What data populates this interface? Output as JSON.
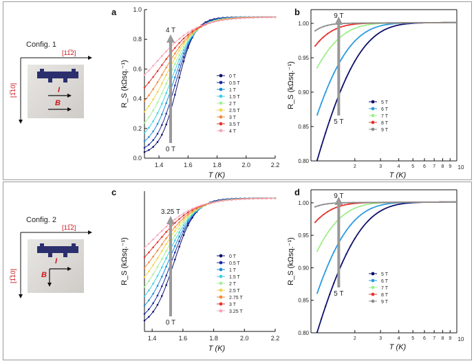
{
  "configs": [
    {
      "title": "Config. 1",
      "dir_h": "[11̅2]",
      "dir_v": "[1̅10]",
      "current_label": "I",
      "field_label": "B",
      "field_dir": "horizontal"
    },
    {
      "title": "Config. 2",
      "dir_h": "[11̅2]",
      "dir_v": "[1̅10]",
      "current_label": "I",
      "field_label": "B",
      "field_dir": "vertical"
    }
  ],
  "colors": {
    "pal9": [
      "#0d0f6b",
      "#1a2aa0",
      "#1f8ad8",
      "#3fd0e6",
      "#a7ef9a",
      "#f5d34a",
      "#f28a3a",
      "#e3342f",
      "#f4a6b8",
      "#b3b3b3"
    ],
    "pal5": [
      "#0d0f6b",
      "#2a9be0",
      "#9fef8a",
      "#e3342f",
      "#8c8c8c"
    ]
  },
  "chart_data": [
    {
      "panel": "a",
      "type": "line",
      "xlabel": "T (K)",
      "ylabel": "R_S (kΩsq.⁻¹)",
      "xlim": [
        1.3,
        2.2
      ],
      "ylim": [
        0.0,
        1.0
      ],
      "xticks": [
        "1.4",
        "1.6",
        "1.8",
        "2.0",
        "2.2"
      ],
      "yticks": [
        "0.0",
        "0.2",
        "0.4",
        "0.6",
        "0.8",
        "1.0"
      ],
      "arrow_top": "4 T",
      "arrow_bottom": "0 T",
      "series": [
        {
          "name": "0 T",
          "tc": 1.525,
          "width": 0.06,
          "low": 0.02
        },
        {
          "name": "0.5 T",
          "tc": 1.51,
          "width": 0.068,
          "low": 0.03
        },
        {
          "name": "1 T",
          "tc": 1.495,
          "width": 0.076,
          "low": 0.05
        },
        {
          "name": "1.5 T",
          "tc": 1.48,
          "width": 0.084,
          "low": 0.08
        },
        {
          "name": "2 T",
          "tc": 1.465,
          "width": 0.092,
          "low": 0.12
        },
        {
          "name": "2.5 T",
          "tc": 1.45,
          "width": 0.1,
          "low": 0.17
        },
        {
          "name": "3 T",
          "tc": 1.435,
          "width": 0.11,
          "low": 0.22
        },
        {
          "name": "3.5 T",
          "tc": 1.415,
          "width": 0.122,
          "low": 0.29
        },
        {
          "name": "4 T",
          "tc": 1.39,
          "width": 0.135,
          "low": 0.36
        }
      ]
    },
    {
      "panel": "b",
      "type": "line",
      "xlabel": "T (K)",
      "ylabel": "R_S (kΩsq.⁻¹)",
      "xscale": "log",
      "xlim": [
        1.0,
        10.0
      ],
      "ylim": [
        0.8,
        1.02
      ],
      "xticks": [
        "2",
        "3",
        "4",
        "5",
        "6",
        "7",
        "8",
        "9"
      ],
      "xlabel_end": "10",
      "yticks": [
        "0.80",
        "0.85",
        "0.90",
        "0.95",
        "1.00"
      ],
      "arrow_top": "9 T",
      "arrow_bottom": "5 T",
      "series": [
        {
          "name": "5 T",
          "start": 0.8,
          "t0": 1.1,
          "scale": 0.7
        },
        {
          "name": "6 T",
          "start": 0.866,
          "t0": 1.1,
          "scale": 0.55
        },
        {
          "name": "7 T",
          "start": 0.935,
          "t0": 1.1,
          "scale": 0.42
        },
        {
          "name": "8 T",
          "start": 0.965,
          "t0": 1.05,
          "scale": 0.3
        },
        {
          "name": "9 T",
          "start": 0.988,
          "t0": 1.05,
          "scale": 0.18
        }
      ]
    },
    {
      "panel": "c",
      "type": "line",
      "xlabel": "T (K)",
      "ylabel": "R_S (kΩsq.⁻¹)",
      "xlim": [
        1.35,
        2.2
      ],
      "ylim": [
        0.0,
        1.0
      ],
      "xticks": [
        "1.4",
        "1.6",
        "1.8",
        "2.0",
        "2.2"
      ],
      "yticks": [],
      "arrow_top": "3.25 T",
      "arrow_bottom": "0 T",
      "series": [
        {
          "name": "0 T",
          "tc": 1.54,
          "width": 0.07,
          "low": 0.02
        },
        {
          "name": "0.5 T",
          "tc": 1.525,
          "width": 0.077,
          "low": 0.04
        },
        {
          "name": "1 T",
          "tc": 1.51,
          "width": 0.084,
          "low": 0.07
        },
        {
          "name": "1.5 T",
          "tc": 1.495,
          "width": 0.091,
          "low": 0.11
        },
        {
          "name": "2 T",
          "tc": 1.48,
          "width": 0.098,
          "low": 0.15
        },
        {
          "name": "2.5 T",
          "tc": 1.465,
          "width": 0.105,
          "low": 0.2
        },
        {
          "name": "2.75 T",
          "tc": 1.45,
          "width": 0.113,
          "low": 0.25
        },
        {
          "name": "3 T",
          "tc": 1.43,
          "width": 0.122,
          "low": 0.31
        },
        {
          "name": "3.25 T",
          "tc": 1.41,
          "width": 0.132,
          "low": 0.37
        }
      ]
    },
    {
      "panel": "d",
      "type": "line",
      "xlabel": "T (K)",
      "ylabel": "R_S (kΩsq.⁻¹)",
      "xscale": "log",
      "xlim": [
        1.0,
        10.0
      ],
      "ylim": [
        0.8,
        1.02
      ],
      "xticks": [
        "2",
        "3",
        "4",
        "5",
        "6",
        "7",
        "8",
        "9"
      ],
      "xlabel_end": "10",
      "yticks": [
        "0.80",
        "0.85",
        "0.90",
        "0.95",
        "1.00"
      ],
      "arrow_top": "9 T",
      "arrow_bottom": "5 T",
      "series": [
        {
          "name": "5 T",
          "start": 0.8,
          "t0": 1.1,
          "scale": 0.7
        },
        {
          "name": "6 T",
          "start": 0.86,
          "t0": 1.1,
          "scale": 0.55
        },
        {
          "name": "7 T",
          "start": 0.925,
          "t0": 1.1,
          "scale": 0.42
        },
        {
          "name": "8 T",
          "start": 0.968,
          "t0": 1.05,
          "scale": 0.3
        },
        {
          "name": "9 T",
          "start": 0.993,
          "t0": 1.05,
          "scale": 0.18
        }
      ]
    }
  ]
}
